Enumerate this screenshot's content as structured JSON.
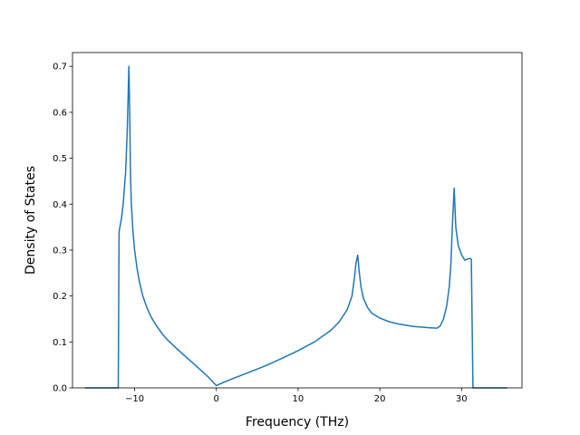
{
  "chart_data": {
    "type": "line",
    "title": "",
    "xlabel": "Frequency (THz)",
    "ylabel": "Density of States",
    "xlim": [
      -17.6,
      37.4
    ],
    "ylim": [
      0.0,
      0.73
    ],
    "grid": false,
    "legend": "none",
    "line_color": "#1f77b4",
    "x_ticks": [
      -10,
      0,
      10,
      20,
      30
    ],
    "y_ticks": [
      0.0,
      0.1,
      0.2,
      0.3,
      0.4,
      0.5,
      0.6,
      0.7
    ],
    "x_tick_labels": [
      "−10",
      "0",
      "10",
      "20",
      "30"
    ],
    "y_tick_labels": [
      "0.0",
      "0.1",
      "0.2",
      "0.3",
      "0.4",
      "0.5",
      "0.6",
      "0.7"
    ],
    "series": [
      {
        "x": [
          -16.0,
          -12.0,
          -11.9,
          -11.6,
          -11.4,
          -11.1,
          -10.9,
          -10.7,
          -10.6,
          -10.5,
          -10.4,
          -10.2,
          -10.0,
          -9.7,
          -9.4,
          -9.0,
          -8.5,
          -8.0,
          -7.5,
          -7.0,
          -6.5,
          -6.0,
          -5.0,
          -4.0,
          -3.0,
          -2.0,
          -1.0,
          0.0,
          1.0,
          2.0,
          4.0,
          6.0,
          8.0,
          10.0,
          12.0,
          14.0,
          15.0,
          16.0,
          16.6,
          16.9,
          17.1,
          17.3,
          17.5,
          17.7,
          18.0,
          18.5,
          19.0,
          20.0,
          21.0,
          22.0,
          24.0,
          26.0,
          27.0,
          27.4,
          27.8,
          28.2,
          28.5,
          28.7,
          28.9,
          29.1,
          29.3,
          29.6,
          30.0,
          30.4,
          30.7,
          31.0,
          31.2,
          31.4,
          31.6,
          35.5
        ],
        "y": [
          0.0,
          0.0,
          0.34,
          0.37,
          0.4,
          0.47,
          0.56,
          0.7,
          0.6,
          0.46,
          0.4,
          0.34,
          0.3,
          0.26,
          0.23,
          0.2,
          0.175,
          0.155,
          0.14,
          0.127,
          0.115,
          0.105,
          0.088,
          0.072,
          0.056,
          0.04,
          0.024,
          0.005,
          0.013,
          0.02,
          0.034,
          0.048,
          0.064,
          0.081,
          0.1,
          0.125,
          0.143,
          0.17,
          0.2,
          0.24,
          0.273,
          0.289,
          0.25,
          0.22,
          0.195,
          0.175,
          0.163,
          0.152,
          0.145,
          0.14,
          0.134,
          0.131,
          0.13,
          0.135,
          0.15,
          0.18,
          0.22,
          0.27,
          0.36,
          0.435,
          0.35,
          0.31,
          0.29,
          0.278,
          0.28,
          0.282,
          0.28,
          0.0,
          0.0,
          0.0
        ]
      }
    ]
  }
}
